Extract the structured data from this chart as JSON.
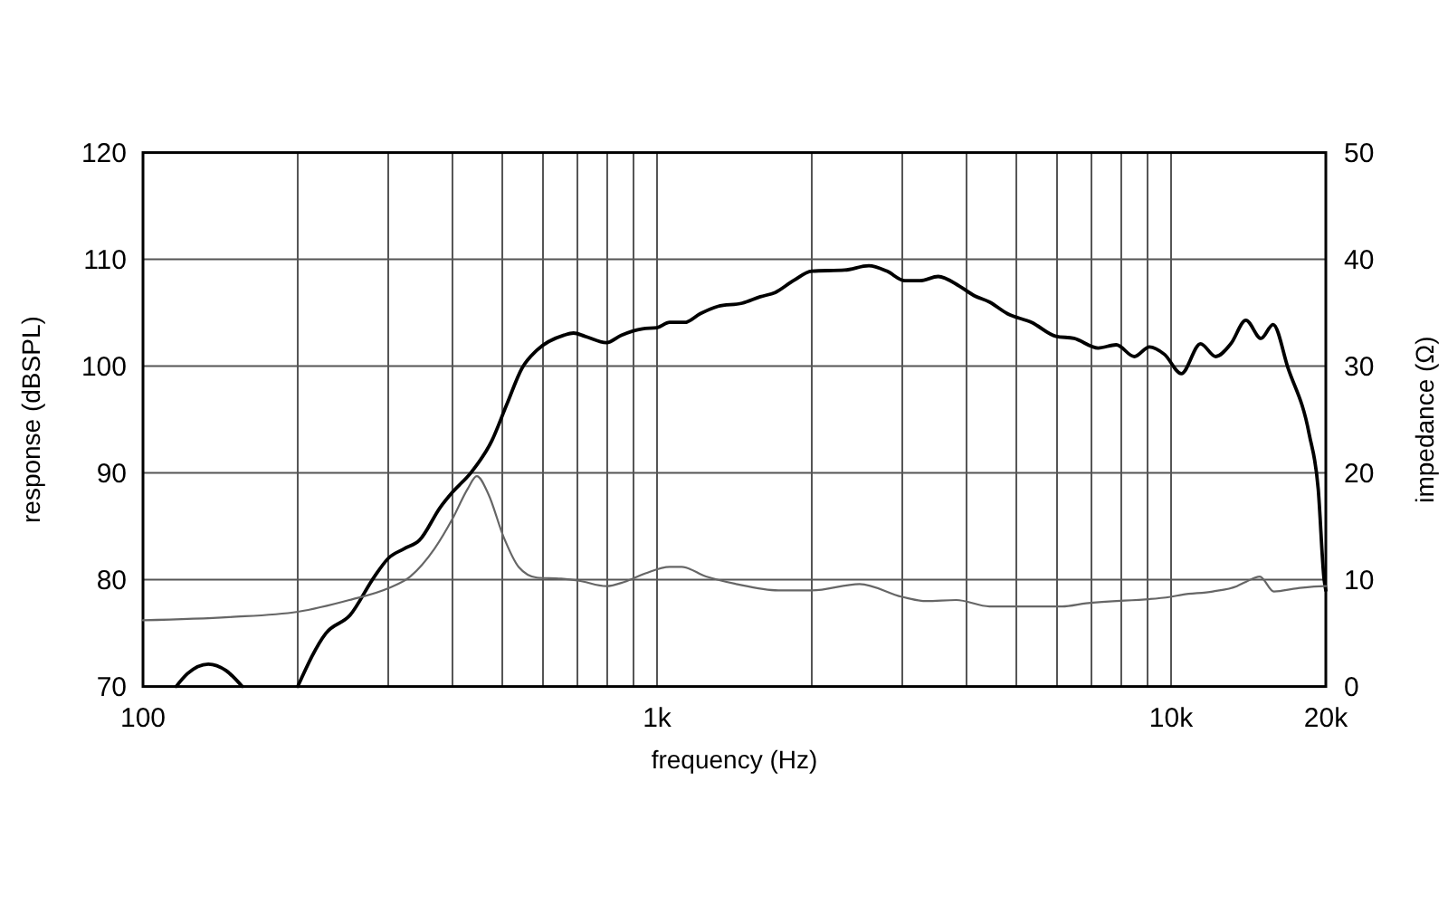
{
  "chart_data": {
    "type": "line",
    "xlabel": "frequency (Hz)",
    "ylabel": "response (dBSPL)",
    "y2label": "impedance (Ω)",
    "log": "x",
    "grid": true,
    "xlim": [
      100,
      20000
    ],
    "xticks": [
      100,
      {
        "value": 200,
        "label": null
      },
      {
        "value": 300,
        "label": null
      },
      {
        "value": 400,
        "label": null
      },
      {
        "value": 500,
        "label": null
      },
      {
        "value": 600,
        "label": null
      },
      {
        "value": 700,
        "label": null
      },
      {
        "value": 800,
        "label": null
      },
      {
        "value": 900,
        "label": null
      },
      {
        "value": 1000,
        "label": "1k"
      },
      {
        "value": 2000,
        "label": null
      },
      {
        "value": 3000,
        "label": null
      },
      {
        "value": 4000,
        "label": null
      },
      {
        "value": 5000,
        "label": null
      },
      {
        "value": 6000,
        "label": null
      },
      {
        "value": 7000,
        "label": null
      },
      {
        "value": 8000,
        "label": null
      },
      {
        "value": 9000,
        "label": null
      },
      {
        "value": 10000,
        "label": "10k"
      },
      {
        "value": 20000,
        "label": "20k"
      }
    ],
    "ylim": [
      70,
      120
    ],
    "yticks": [
      70,
      80,
      90,
      100,
      110,
      120
    ],
    "y2lim": [
      0,
      50
    ],
    "y2ticks": [
      0,
      10,
      20,
      30,
      40,
      50
    ],
    "series": [
      {
        "color": "#000000",
        "x": [
          116,
          122,
          134,
          145,
          156,
          180,
          200,
          227,
          253,
          282,
          300,
          322,
          345,
          379,
          400,
          434,
          477,
          510,
          546,
          584,
          659,
          688,
          724,
          797,
          852,
          937,
          1000,
          1058,
          1132,
          1212,
          1314,
          1464,
          1588,
          1698,
          1841,
          2000,
          2318,
          2582,
          2800,
          3035,
          3248,
          3523,
          3873,
          4141,
          4434,
          4810,
          5355,
          5970,
          6475,
          7214,
          7822,
          8482,
          9075,
          9710,
          10470,
          11410,
          12210,
          13070,
          13980,
          14960,
          15790,
          16890,
          18570,
          19330,
          19850,
          20000
        ],
        "values": [
          70,
          71.2,
          72.1,
          71.5,
          70,
          null,
          70,
          75,
          76.7,
          80.3,
          82,
          82.9,
          83.7,
          86.8,
          88.2,
          90,
          93,
          96.4,
          99.8,
          101.5,
          102.9,
          103.1,
          102.8,
          102.2,
          102.9,
          103.5,
          103.6,
          104.1,
          104.1,
          104.9,
          105.6,
          105.9,
          106.5,
          106.9,
          108,
          108.9,
          109,
          109.4,
          108.9,
          108,
          108,
          108.4,
          107.5,
          106.6,
          106,
          104.9,
          104.1,
          102.8,
          102.6,
          101.7,
          102,
          100.9,
          101.8,
          101.1,
          99.3,
          102.1,
          100.9,
          102.1,
          104.3,
          102.6,
          103.9,
          99.8,
          93.6,
          88.5,
          80,
          79
        ]
      },
      {
        "color": "#666666",
        "axis": "y2",
        "x": [
          100,
          147,
          200,
          252,
          300,
          331,
          369,
          400,
          428,
          446,
          470,
          503,
          538,
          584,
          651,
          706,
          797,
          864,
          950,
          1058,
          1117,
          1245,
          1425,
          1722,
          2000,
          2478,
          2996,
          3338,
          3820,
          4434,
          6134,
          6833,
          9970,
          10520,
          12050,
          13430,
          13980,
          14880,
          15850,
          17580,
          19850,
          20000
        ],
        "values": [
          6.2,
          6.5,
          7,
          8.1,
          9.2,
          10.3,
          12.9,
          15.7,
          18.5,
          19.7,
          18,
          14,
          11.2,
          10.2,
          10.1,
          9.9,
          9.4,
          9.8,
          10.6,
          11.2,
          11.2,
          10.3,
          9.6,
          9,
          9,
          9.6,
          8.4,
          8,
          8.1,
          7.5,
          7.5,
          7.8,
          8.4,
          8.6,
          8.9,
          9.4,
          9.8,
          10.3,
          8.9,
          9.2,
          9.4,
          9.4
        ]
      }
    ]
  }
}
